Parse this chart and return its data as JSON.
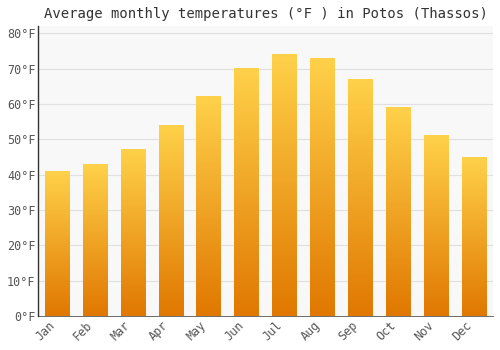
{
  "title": "Average monthly temperatures (°F ) in Potos (Thassos)",
  "months": [
    "Jan",
    "Feb",
    "Mar",
    "Apr",
    "May",
    "Jun",
    "Jul",
    "Aug",
    "Sep",
    "Oct",
    "Nov",
    "Dec"
  ],
  "values": [
    41,
    43,
    47,
    54,
    62,
    70,
    74,
    73,
    67,
    59,
    51,
    45
  ],
  "bar_color_top": "#FFD04A",
  "bar_color_mid": "#FFB300",
  "bar_color_bottom": "#E07800",
  "background_color": "#ffffff",
  "plot_bg_color": "#f8f8f8",
  "grid_color": "#e0e0e0",
  "ylim": [
    0,
    82
  ],
  "yticks": [
    0,
    10,
    20,
    30,
    40,
    50,
    60,
    70,
    80
  ],
  "ytick_labels": [
    "0°F",
    "10°F",
    "20°F",
    "30°F",
    "40°F",
    "50°F",
    "60°F",
    "70°F",
    "80°F"
  ],
  "title_fontsize": 10,
  "tick_fontsize": 8.5,
  "font_family": "monospace",
  "spine_color": "#333333",
  "tick_color": "#555555"
}
